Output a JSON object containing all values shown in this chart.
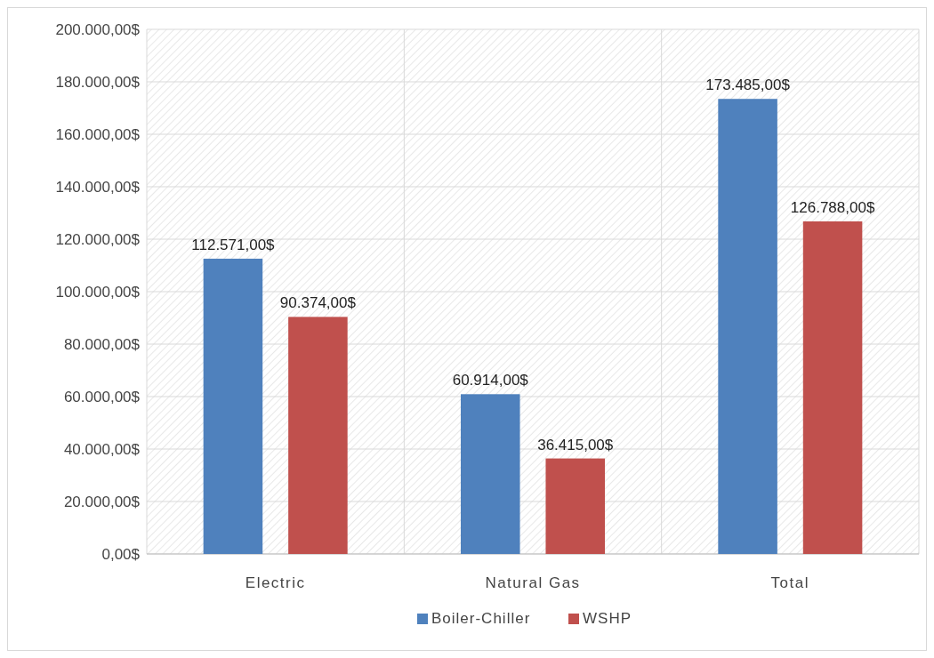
{
  "chart_data": {
    "type": "bar",
    "categories": [
      "Electric",
      "Natural Gas",
      "Total"
    ],
    "series": [
      {
        "name": "Boiler-Chiller",
        "color": "#4f81bd",
        "values": [
          112571,
          60914,
          173485
        ],
        "value_labels": [
          "112.571,00$",
          "60.914,00$",
          "173.485,00$"
        ]
      },
      {
        "name": "WSHP",
        "color": "#c0504d",
        "values": [
          90374,
          36415,
          126788
        ],
        "value_labels": [
          "90.374,00$",
          "36.415,00$",
          "126.788,00$"
        ]
      }
    ],
    "ylim": [
      0,
      200000
    ],
    "yticks": [
      {
        "value": 0,
        "label": "0,00$"
      },
      {
        "value": 20000,
        "label": "20.000,00$"
      },
      {
        "value": 40000,
        "label": "40.000,00$"
      },
      {
        "value": 60000,
        "label": "60.000,00$"
      },
      {
        "value": 80000,
        "label": "80.000,00$"
      },
      {
        "value": 100000,
        "label": "100.000,00$"
      },
      {
        "value": 120000,
        "label": "120.000,00$"
      },
      {
        "value": 140000,
        "label": "140.000,00$"
      },
      {
        "value": 160000,
        "label": "160.000,00$"
      },
      {
        "value": 180000,
        "label": "180.000,00$"
      },
      {
        "value": 200000,
        "label": "200.000,00$"
      }
    ],
    "grid": true,
    "legend": "bottom"
  }
}
